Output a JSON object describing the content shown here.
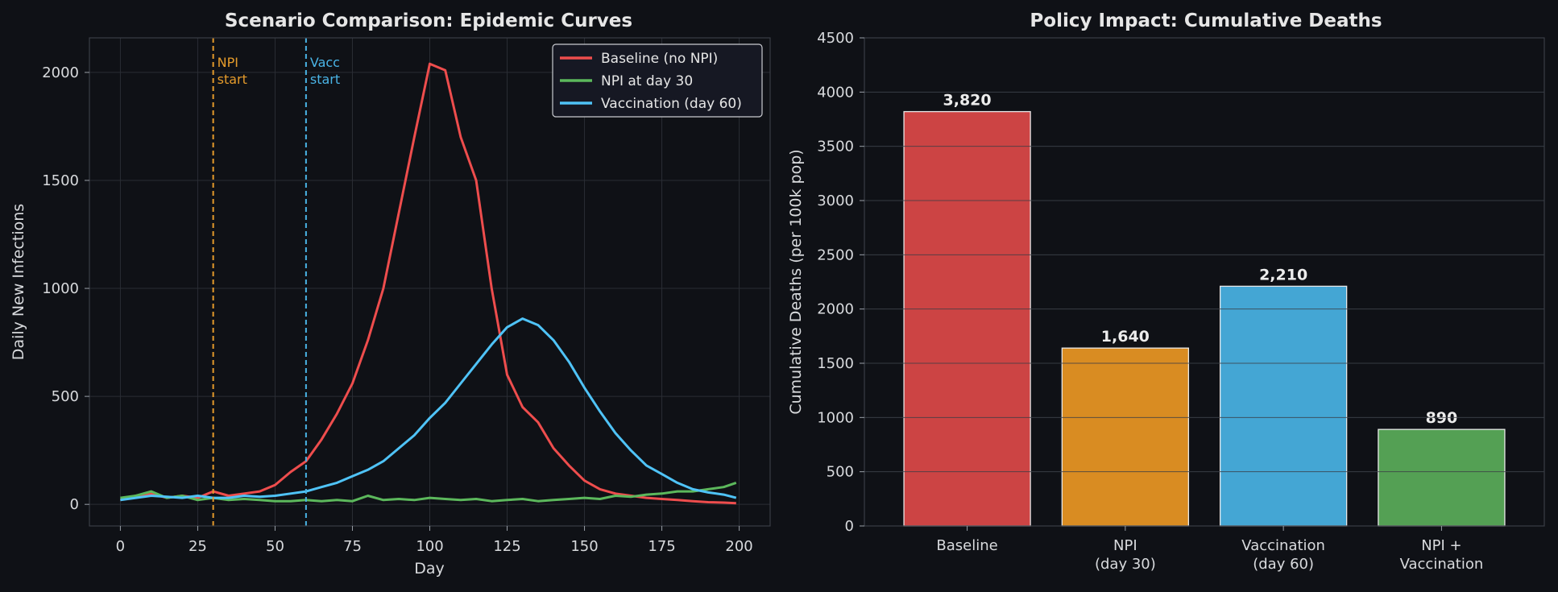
{
  "chart_data": [
    {
      "type": "line",
      "title": "Scenario Comparison: Epidemic Curves",
      "xlabel": "Day",
      "ylabel": "Daily New Infections",
      "xlim": [
        -10,
        210
      ],
      "ylim": [
        -100,
        2160
      ],
      "xticks": [
        "0",
        "25",
        "50",
        "75",
        "100",
        "125",
        "150",
        "175",
        "200"
      ],
      "yticks": [
        "0",
        "500",
        "1000",
        "1500",
        "2000"
      ],
      "grid": true,
      "legend_position": "upper right",
      "annotations": [
        {
          "x": 30,
          "text_line1": "NPI",
          "text_line2": "start",
          "color": "#e59b2b"
        },
        {
          "x": 60,
          "text_line1": "Vacc",
          "text_line2": "start",
          "color": "#4ab4e6"
        }
      ],
      "series": [
        {
          "name": "Baseline (no NPI)",
          "color": "#ee4d4d",
          "x": [
            0,
            5,
            10,
            15,
            20,
            25,
            30,
            35,
            40,
            45,
            50,
            55,
            60,
            65,
            70,
            75,
            80,
            85,
            90,
            95,
            100,
            105,
            110,
            115,
            120,
            125,
            130,
            135,
            140,
            145,
            150,
            155,
            160,
            165,
            170,
            175,
            180,
            185,
            190,
            195,
            199
          ],
          "y": [
            20,
            40,
            50,
            30,
            40,
            30,
            60,
            40,
            50,
            60,
            90,
            150,
            200,
            300,
            420,
            560,
            760,
            1000,
            1350,
            1700,
            2040,
            2010,
            1700,
            1500,
            1000,
            600,
            450,
            380,
            260,
            180,
            110,
            70,
            50,
            40,
            30,
            25,
            20,
            15,
            10,
            8,
            5
          ]
        },
        {
          "name": "NPI at day 30",
          "color": "#5cb85c",
          "x": [
            0,
            5,
            10,
            15,
            20,
            25,
            30,
            35,
            40,
            45,
            50,
            55,
            60,
            65,
            70,
            75,
            80,
            85,
            90,
            95,
            100,
            105,
            110,
            115,
            120,
            125,
            130,
            135,
            140,
            145,
            150,
            155,
            160,
            165,
            170,
            175,
            180,
            185,
            190,
            195,
            199
          ],
          "y": [
            30,
            40,
            60,
            30,
            40,
            20,
            30,
            20,
            25,
            20,
            15,
            15,
            20,
            15,
            20,
            15,
            40,
            20,
            25,
            20,
            30,
            25,
            20,
            25,
            15,
            20,
            25,
            15,
            20,
            25,
            30,
            25,
            40,
            35,
            45,
            50,
            60,
            60,
            70,
            80,
            100
          ]
        },
        {
          "name": "Vaccination (day 60)",
          "color": "#4fc3f7",
          "x": [
            0,
            5,
            10,
            15,
            20,
            25,
            30,
            35,
            40,
            45,
            50,
            55,
            60,
            65,
            70,
            75,
            80,
            85,
            90,
            95,
            100,
            105,
            110,
            115,
            120,
            125,
            130,
            135,
            140,
            145,
            150,
            155,
            160,
            165,
            170,
            175,
            180,
            185,
            190,
            195,
            199
          ],
          "y": [
            20,
            30,
            40,
            35,
            30,
            40,
            30,
            30,
            40,
            35,
            40,
            50,
            60,
            80,
            100,
            130,
            160,
            200,
            260,
            320,
            400,
            470,
            560,
            650,
            740,
            820,
            860,
            830,
            760,
            660,
            540,
            430,
            330,
            250,
            180,
            140,
            100,
            70,
            55,
            45,
            30
          ]
        }
      ]
    },
    {
      "type": "bar",
      "title": "Policy Impact: Cumulative Deaths",
      "xlabel": "",
      "ylabel": "Cumulative Deaths (per 100k pop)",
      "ylim": [
        0,
        4500
      ],
      "yticks": [
        "0",
        "500",
        "1000",
        "1500",
        "2000",
        "2500",
        "3000",
        "3500",
        "4000",
        "4500"
      ],
      "grid": true,
      "categories": [
        {
          "line1": "Baseline",
          "line2": ""
        },
        {
          "line1": "NPI",
          "line2": "(day 30)"
        },
        {
          "line1": "Vaccination",
          "line2": "(day 60)"
        },
        {
          "line1": "NPI +",
          "line2": "Vaccination"
        }
      ],
      "values": [
        3820,
        1640,
        2210,
        890
      ],
      "value_labels": [
        "3,820",
        "1,640",
        "2,210",
        "890"
      ],
      "colors": [
        "#cc4444",
        "#d98c22",
        "#44a6d4",
        "#54a054"
      ]
    }
  ]
}
